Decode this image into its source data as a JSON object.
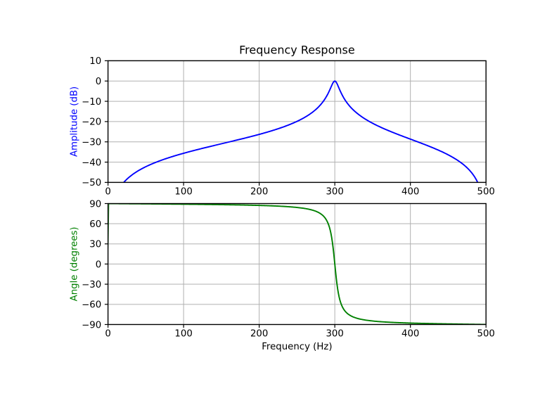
{
  "figure": {
    "background": "#ffffff"
  },
  "chart_data": [
    {
      "type": "line",
      "title": "Frequency Response",
      "ylabel": "Amplitude (dB)",
      "xlim": [
        0,
        500
      ],
      "ylim": [
        -50,
        10
      ],
      "xticks": [
        0,
        100,
        200,
        300,
        400,
        500
      ],
      "yticks": [
        10,
        0,
        -10,
        -20,
        -30,
        -40,
        -50
      ],
      "grid": true,
      "legend": "none",
      "line_color": "#0000ff",
      "ylabel_color": "#0000ff",
      "grid_color": "#b0b0b0",
      "series": [
        {
          "name": "amplitude_dB",
          "x": [
            20,
            50,
            100,
            150,
            200,
            250,
            280,
            290,
            295,
            300,
            305,
            310,
            320,
            350,
            400,
            450,
            480,
            490
          ],
          "y": [
            -50.4,
            -42.3,
            -35.6,
            -30.9,
            -26.3,
            -19.9,
            -12.2,
            -6.9,
            -3.0,
            0.0,
            -3.0,
            -7.1,
            -12.5,
            -20.8,
            -28.7,
            -36.4,
            -44.8,
            -50.9
          ]
        }
      ],
      "generator": {
        "kind": "iir-peak-filter-frequency-response",
        "peak_hz": 300,
        "b": [
          0.0304709,
          0,
          -0.0304709
        ],
        "a": [
          1,
          0.5992026,
          0.9390581
        ],
        "fs": 1000,
        "n_points": 512,
        "db_floor": -100
      }
    },
    {
      "type": "line",
      "title": "",
      "ylabel": "Angle (degrees)",
      "xlabel": "Frequency (Hz)",
      "xlim": [
        0,
        500
      ],
      "ylim": [
        -90,
        90
      ],
      "xticks": [
        0,
        100,
        200,
        300,
        400,
        500
      ],
      "yticks": [
        90,
        60,
        30,
        0,
        -30,
        -60,
        -90
      ],
      "grid": true,
      "legend": "none",
      "line_color": "#008000",
      "ylabel_color": "#008000",
      "grid_color": "#b0b0b0",
      "series": [
        {
          "name": "phase_degrees",
          "x": [
            0,
            1,
            50,
            100,
            200,
            250,
            280,
            290,
            295,
            300,
            305,
            310,
            320,
            350,
            400,
            450,
            499
          ],
          "y": [
            0,
            89.7,
            89.6,
            89.1,
            87.2,
            84.2,
            75.8,
            63.2,
            44.9,
            0.0,
            -45.1,
            -63.7,
            -76.3,
            -84.8,
            -87.9,
            -89.1,
            -89.9
          ]
        }
      ]
    }
  ]
}
